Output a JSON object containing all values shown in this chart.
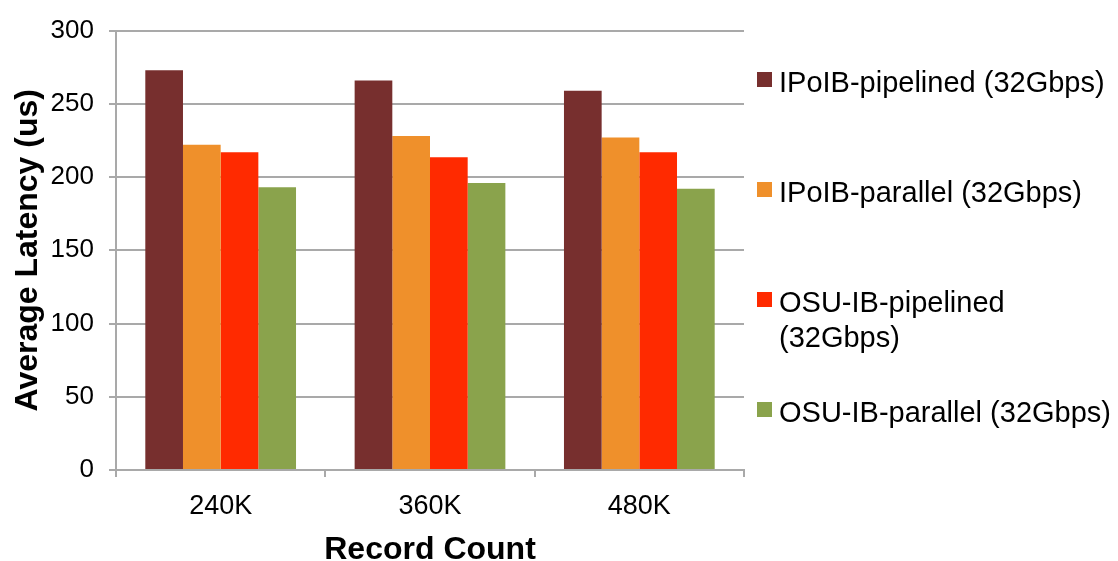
{
  "chart_data": {
    "type": "bar",
    "xlabel": "Record Count",
    "ylabel": "Average Latency (us)",
    "categories": [
      "240K",
      "360K",
      "480K"
    ],
    "series": [
      {
        "name": "IPoIB-pipelined (32Gbps)",
        "color": "#772f2e",
        "values": [
          273,
          266,
          259
        ]
      },
      {
        "name": "IPoIB-parallel (32Gbps)",
        "color": "#ef902b",
        "values": [
          222,
          228,
          227
        ]
      },
      {
        "name": "OSU-IB-pipelined (32Gbps)",
        "color": "#ff2a00",
        "values": [
          217,
          213.5,
          217
        ]
      },
      {
        "name": "OSU-IB-parallel (32Gbps)",
        "color": "#8aa34c",
        "values": [
          193,
          196,
          192
        ]
      }
    ],
    "ylim": [
      0,
      300
    ],
    "yticks": [
      0,
      50,
      100,
      150,
      200,
      250,
      300
    ],
    "grid": "y",
    "legend": "right"
  }
}
